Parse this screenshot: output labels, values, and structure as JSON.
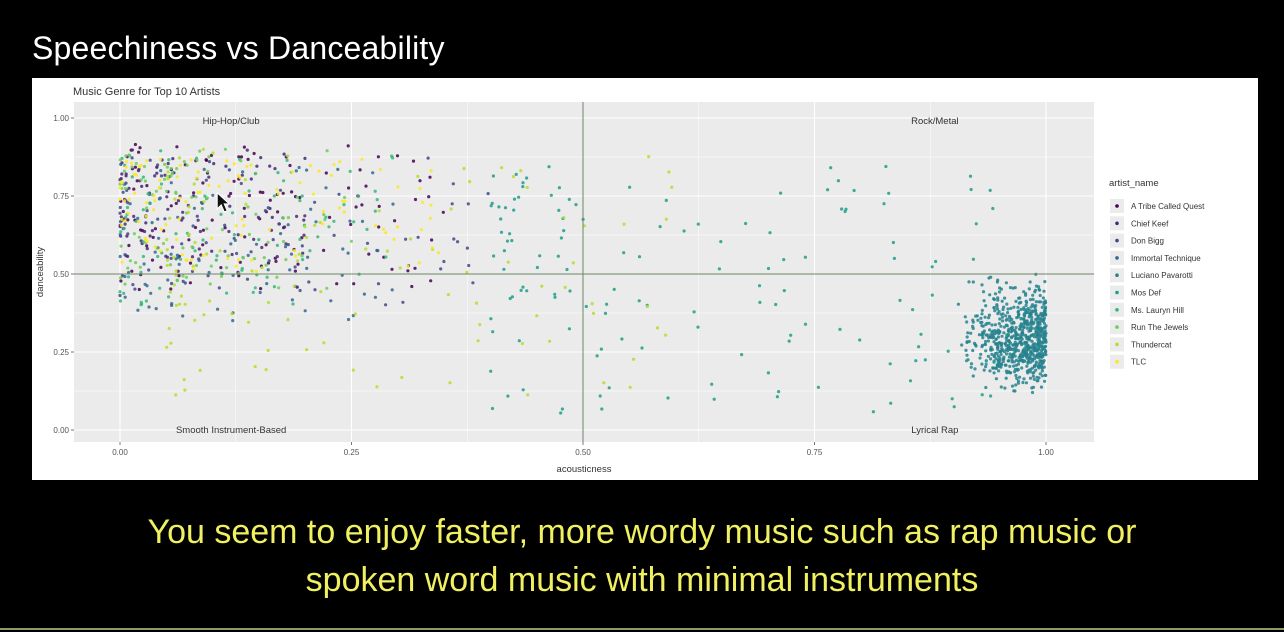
{
  "slide": {
    "title": "Speechiness vs Danceability",
    "caption_line1": "You seem to enjoy faster, more wordy music such as rap music or",
    "caption_line2": "spoken word music with minimal instruments"
  },
  "colors": {
    "background": "#000000",
    "title": "#ffffff",
    "caption": "#f0f060",
    "panel": "#ebebeb",
    "gridline": "#ffffff",
    "reference_line": "#6e8466",
    "highlight_cluster": "#2fc08f",
    "yellow_points": "#d9e021"
  },
  "chart_data": {
    "type": "scatter",
    "title": "Music Genre for Top 10 Artists",
    "xlabel": "acousticness",
    "ylabel": "danceability",
    "xlim": [
      0,
      1
    ],
    "ylim": [
      0,
      1
    ],
    "xticks": [
      "0.00",
      "0.25",
      "0.50",
      "0.75",
      "1.00"
    ],
    "yticks": [
      "0.00",
      "0.25",
      "0.50",
      "0.75",
      "1.00"
    ],
    "grid": true,
    "legend_position": "right",
    "legend_title": "artist_name",
    "reference_lines": {
      "x": 0.5,
      "y": 0.5
    },
    "quadrant_labels": [
      {
        "text": "Hip-Hop/Club",
        "x": 0.12,
        "y": 0.99
      },
      {
        "text": "Rock/Metal",
        "x": 0.88,
        "y": 0.99
      },
      {
        "text": "Smooth Instrument-Based",
        "x": 0.12,
        "y": 0.0
      },
      {
        "text": "Lyrical Rap",
        "x": 0.88,
        "y": 0.0
      }
    ],
    "series": [
      {
        "name": "A Tribe Called Quest",
        "color": "#440154",
        "n": 130,
        "x_range": [
          0.0,
          0.35
        ],
        "y_range": [
          0.45,
          0.92
        ]
      },
      {
        "name": "Chief Keef",
        "color": "#482878",
        "n": 90,
        "x_range": [
          0.0,
          0.2
        ],
        "y_range": [
          0.55,
          0.9
        ]
      },
      {
        "name": "Don Bigg",
        "color": "#3e4a89",
        "n": 80,
        "x_range": [
          0.0,
          0.4
        ],
        "y_range": [
          0.4,
          0.88
        ]
      },
      {
        "name": "Immortal Technique",
        "color": "#31688e",
        "n": 90,
        "x_range": [
          0.0,
          0.3
        ],
        "y_range": [
          0.35,
          0.85
        ]
      },
      {
        "name": "Luciano Pavarotti",
        "color": "#26828e",
        "n": 700,
        "x_range": [
          0.9,
          1.0
        ],
        "y_range": [
          0.08,
          0.52
        ]
      },
      {
        "name": "Mos Def",
        "color": "#1f9e89",
        "n": 140,
        "x_range": [
          0.4,
          0.98
        ],
        "y_range": [
          0.05,
          0.85
        ]
      },
      {
        "name": "Ms. Lauryn Hill",
        "color": "#35b779",
        "n": 90,
        "x_range": [
          0.0,
          0.3
        ],
        "y_range": [
          0.4,
          0.9
        ]
      },
      {
        "name": "Run The Jewels",
        "color": "#6ece58",
        "n": 90,
        "x_range": [
          0.0,
          0.25
        ],
        "y_range": [
          0.45,
          0.9
        ]
      },
      {
        "name": "Thundercat",
        "color": "#b5de2b",
        "n": 110,
        "x_range": [
          0.05,
          0.6
        ],
        "y_range": [
          0.1,
          0.9
        ]
      },
      {
        "name": "TLC",
        "color": "#fde725",
        "n": 110,
        "x_range": [
          0.0,
          0.35
        ],
        "y_range": [
          0.5,
          0.88
        ]
      }
    ]
  }
}
